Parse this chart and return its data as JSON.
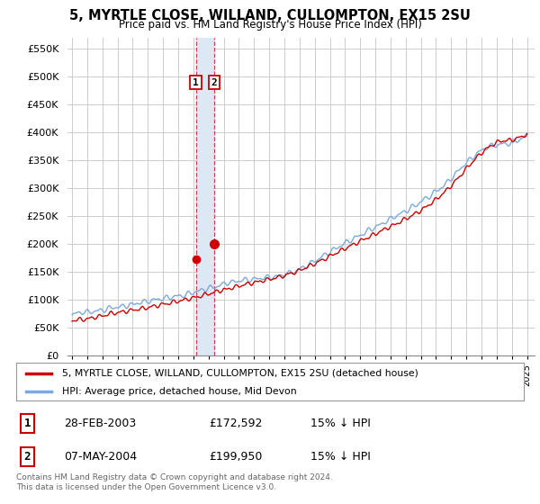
{
  "title": "5, MYRTLE CLOSE, WILLAND, CULLOMPTON, EX15 2SU",
  "subtitle": "Price paid vs. HM Land Registry's House Price Index (HPI)",
  "ylabel_ticks": [
    "£0",
    "£50K",
    "£100K",
    "£150K",
    "£200K",
    "£250K",
    "£300K",
    "£350K",
    "£400K",
    "£450K",
    "£500K",
    "£550K"
  ],
  "ytick_values": [
    0,
    50000,
    100000,
    150000,
    200000,
    250000,
    300000,
    350000,
    400000,
    450000,
    500000,
    550000
  ],
  "ylim": [
    0,
    570000
  ],
  "x_start_year": 1995,
  "x_end_year": 2025,
  "transaction1_price": 172592,
  "transaction1_year": 2003.16,
  "transaction2_price": 199950,
  "transaction2_year": 2004.36,
  "legend_line1": "5, MYRTLE CLOSE, WILLAND, CULLOMPTON, EX15 2SU (detached house)",
  "legend_line2": "HPI: Average price, detached house, Mid Devon",
  "footnote": "Contains HM Land Registry data © Crown copyright and database right 2024.\nThis data is licensed under the Open Government Licence v3.0.",
  "table_row1": [
    "1",
    "28-FEB-2003",
    "£172,592",
    "15% ↓ HPI"
  ],
  "table_row2": [
    "2",
    "07-MAY-2004",
    "£199,950",
    "15% ↓ HPI"
  ],
  "hpi_color": "#7aaadd",
  "price_color": "#cc0000",
  "highlight_color": "#dde8f5",
  "background_color": "#ffffff",
  "grid_color": "#cccccc"
}
